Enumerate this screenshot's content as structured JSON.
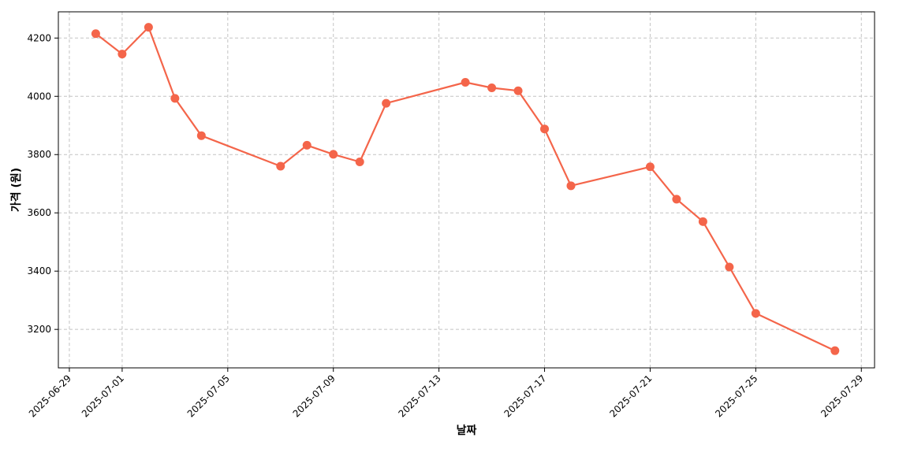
{
  "chart_data": {
    "type": "line",
    "title": "",
    "xlabel": "날짜",
    "ylabel": "가격 (원)",
    "x_axis_type": "date",
    "xlim": [
      "2025-06-28 14:00",
      "2025-07-29 12:00"
    ],
    "ylim": [
      3068,
      4290
    ],
    "x_ticks": [
      "2025-06-29",
      "2025-07-01",
      "2025-07-05",
      "2025-07-09",
      "2025-07-13",
      "2025-07-17",
      "2025-07-21",
      "2025-07-25",
      "2025-07-29"
    ],
    "y_ticks": [
      3200,
      3400,
      3600,
      3800,
      4000,
      4200
    ],
    "grid": true,
    "series": [
      {
        "color": "#f4654a",
        "marker": "circle",
        "points": [
          {
            "x": "2025-06-30",
            "y": 4215
          },
          {
            "x": "2025-07-01",
            "y": 4145
          },
          {
            "x": "2025-07-02",
            "y": 4237
          },
          {
            "x": "2025-07-03",
            "y": 3993
          },
          {
            "x": "2025-07-04",
            "y": 3865
          },
          {
            "x": "2025-07-07",
            "y": 3760
          },
          {
            "x": "2025-07-08",
            "y": 3832
          },
          {
            "x": "2025-07-09",
            "y": 3801
          },
          {
            "x": "2025-07-10",
            "y": 3775
          },
          {
            "x": "2025-07-11",
            "y": 3976
          },
          {
            "x": "2025-07-14",
            "y": 4048
          },
          {
            "x": "2025-07-15",
            "y": 4029
          },
          {
            "x": "2025-07-16",
            "y": 4019
          },
          {
            "x": "2025-07-17",
            "y": 3888
          },
          {
            "x": "2025-07-18",
            "y": 3693
          },
          {
            "x": "2025-07-21",
            "y": 3758
          },
          {
            "x": "2025-07-22",
            "y": 3647
          },
          {
            "x": "2025-07-23",
            "y": 3570
          },
          {
            "x": "2025-07-24",
            "y": 3414
          },
          {
            "x": "2025-07-25",
            "y": 3255
          },
          {
            "x": "2025-07-28",
            "y": 3127
          }
        ]
      }
    ]
  }
}
